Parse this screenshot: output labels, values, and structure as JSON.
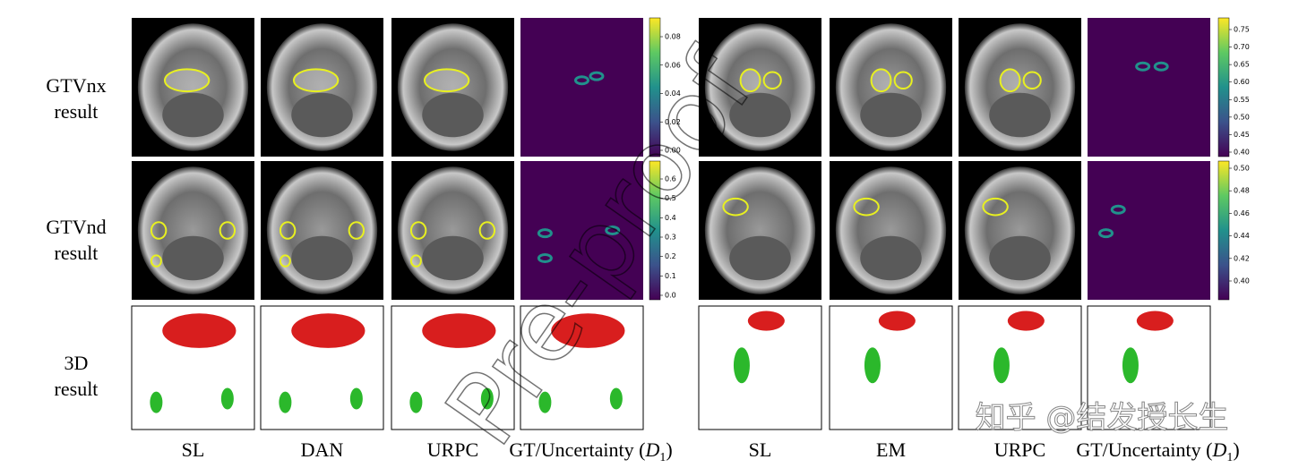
{
  "row_labels": [
    [
      "GTVnx",
      "result"
    ],
    [
      "GTVnd",
      "result"
    ],
    [
      "3D",
      "result"
    ]
  ],
  "groups": [
    {
      "columns": [
        "SL",
        "DAN",
        "URPC"
      ],
      "colorbars": [
        [
          "0.00",
          "0.02",
          "0.04",
          "0.06",
          "0.08"
        ],
        [
          "0.0",
          "0.1",
          "0.2",
          "0.3",
          "0.4",
          "0.5",
          "0.6"
        ]
      ]
    },
    {
      "columns": [
        "SL",
        "EM",
        "URPC"
      ],
      "colorbars": [
        [
          "0.40",
          "0.45",
          "0.50",
          "0.55",
          "0.60",
          "0.65",
          "0.70",
          "0.75"
        ],
        [
          "0.40",
          "0.42",
          "0.44",
          "0.46",
          "0.48",
          "0.50"
        ]
      ]
    }
  ],
  "last_column": {
    "text": "GT/Uncertainty (",
    "symbol": "D",
    "subscript": "1",
    "close": ")"
  },
  "watermarks": [
    "Pre-proof",
    "知乎 @结发授长生"
  ]
}
